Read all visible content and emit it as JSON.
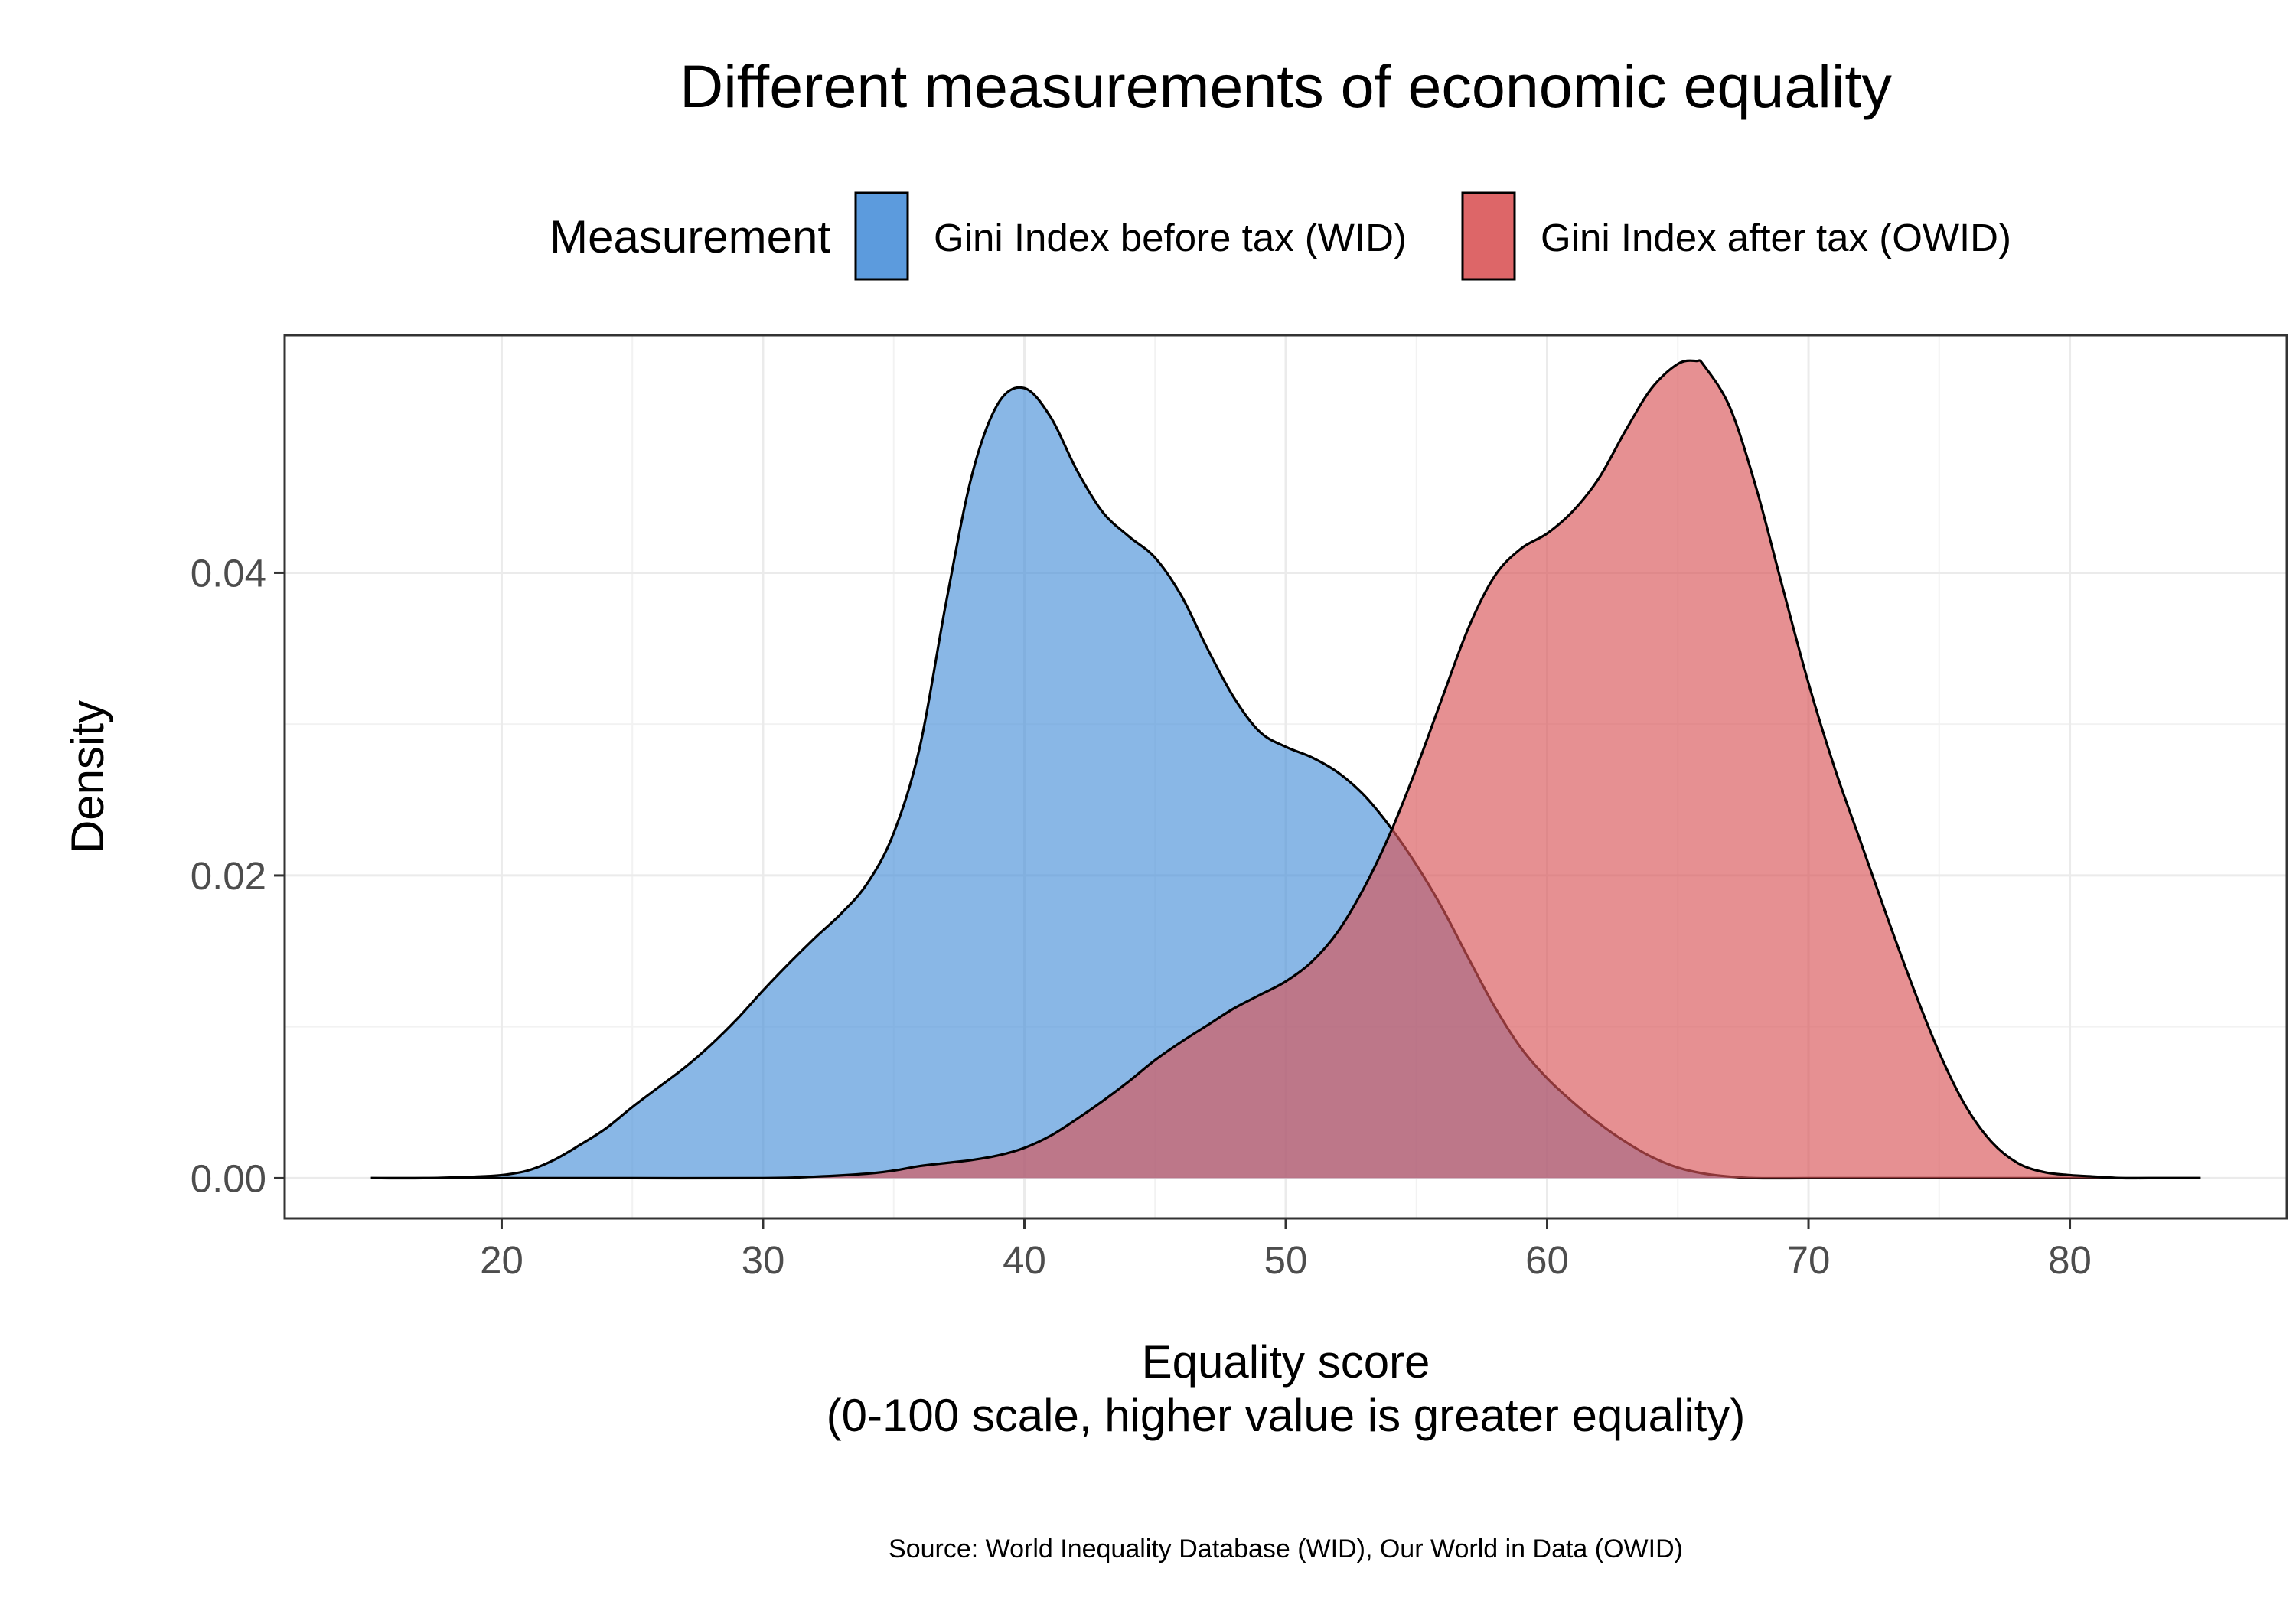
{
  "chart_data": {
    "type": "area",
    "title": "Different measurements of economic equality",
    "xlabel_line1": "Equality score",
    "xlabel_line2": "(0-100 scale, higher value is greater equality)",
    "ylabel": "Density",
    "caption": "Source: World Inequality Database (WID), Our World in Data (OWID)",
    "legend_title": "Measurement",
    "legend_position": "top",
    "grid": true,
    "xlim": [
      11.7,
      88.3
    ],
    "ylim": [
      -0.00266,
      0.0557
    ],
    "x_ticks": [
      20,
      30,
      40,
      50,
      60,
      70,
      80
    ],
    "x_tick_labels": [
      "20",
      "30",
      "40",
      "50",
      "60",
      "70",
      "80"
    ],
    "y_ticks": [
      0,
      0.02,
      0.04
    ],
    "y_tick_labels": [
      "0.00",
      "0.02",
      "0.04"
    ],
    "series": [
      {
        "name": "Gini Index before tax (WID)",
        "color": "#4A90D9",
        "fill_opacity": 0.65,
        "x": [
          15,
          17,
          19,
          20,
          21,
          22,
          23,
          24,
          25,
          26,
          27,
          28,
          29,
          30,
          31,
          32,
          33,
          34,
          35,
          36,
          37,
          38,
          39,
          40,
          41,
          42,
          43,
          44,
          45,
          46,
          47,
          48,
          49,
          50,
          51,
          52,
          53,
          54,
          55,
          56,
          57,
          58,
          59,
          60,
          61,
          62,
          63,
          64,
          65,
          66,
          67,
          68,
          70,
          72,
          75,
          80,
          85
        ],
        "y": [
          0.0,
          0.0,
          0.0001,
          0.0002,
          0.0005,
          0.0012,
          0.0022,
          0.0033,
          0.0047,
          0.006,
          0.0073,
          0.0088,
          0.0105,
          0.0124,
          0.0142,
          0.0159,
          0.0175,
          0.0195,
          0.0228,
          0.0285,
          0.038,
          0.0465,
          0.0512,
          0.0522,
          0.0503,
          0.0468,
          0.044,
          0.0424,
          0.041,
          0.0385,
          0.035,
          0.0318,
          0.0295,
          0.0285,
          0.0278,
          0.0268,
          0.0253,
          0.0232,
          0.0207,
          0.0178,
          0.0145,
          0.0113,
          0.0086,
          0.0066,
          0.005,
          0.0036,
          0.0024,
          0.0014,
          0.0007,
          0.0003,
          0.0001,
          0.0,
          0.0,
          0.0,
          0.0,
          0.0,
          0.0
        ]
      },
      {
        "name": "Gini Index after tax (OWID)",
        "color": "#D95558",
        "fill_opacity": 0.65,
        "x": [
          15,
          20,
          25,
          30,
          32,
          34,
          35,
          36,
          37,
          38,
          39,
          40,
          41,
          42,
          43,
          44,
          45,
          46,
          47,
          48,
          49,
          50,
          51,
          52,
          53,
          54,
          55,
          56,
          57,
          58,
          59,
          60,
          61,
          62,
          63,
          64,
          65,
          65.7,
          66,
          67,
          68,
          69,
          70,
          71,
          72,
          73,
          74,
          75,
          76,
          77,
          78,
          79,
          80,
          81,
          82,
          83,
          85
        ],
        "y": [
          0.0,
          0.0,
          0.0,
          0.0,
          0.0001,
          0.0003,
          0.0005,
          0.0008,
          0.001,
          0.0012,
          0.0015,
          0.002,
          0.0028,
          0.0039,
          0.0051,
          0.0064,
          0.0078,
          0.009,
          0.0101,
          0.0112,
          0.0121,
          0.013,
          0.0143,
          0.0163,
          0.0192,
          0.0228,
          0.0271,
          0.0318,
          0.0364,
          0.0398,
          0.0416,
          0.0426,
          0.0441,
          0.0463,
          0.0494,
          0.0522,
          0.0538,
          0.054,
          0.0537,
          0.0509,
          0.0456,
          0.0391,
          0.0327,
          0.0271,
          0.0222,
          0.0173,
          0.0126,
          0.0083,
          0.0048,
          0.0024,
          0.001,
          0.0004,
          0.0002,
          0.0001,
          0.0,
          0.0,
          0.0
        ]
      }
    ]
  }
}
